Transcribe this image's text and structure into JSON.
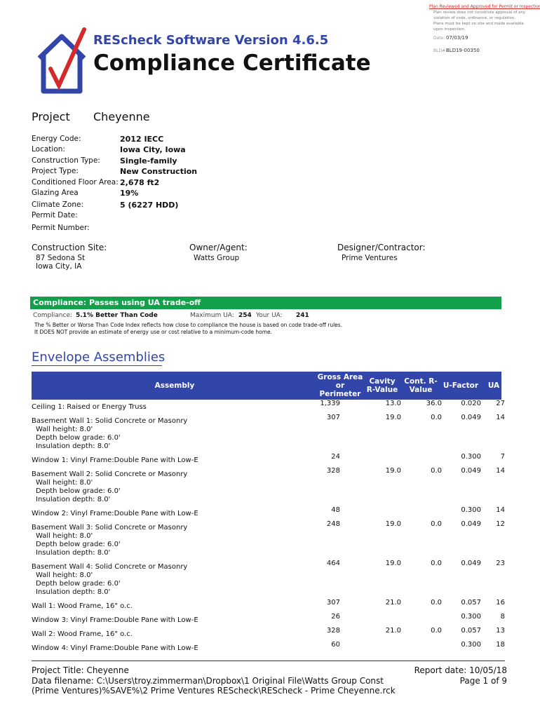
{
  "stamp": {
    "heading": "Plan Reviewed and Approved for Permit or Inspection",
    "lines": [
      "Plan review does not constitute approval of any",
      "violation of code, ordinance, or regulation.",
      "Plans must be kept on site and made available",
      "upon inspection."
    ],
    "date_label": "Date:",
    "date": "07/03/19",
    "permit_label": "BLD#:",
    "permit": "BLD19-00350"
  },
  "header": {
    "software": "REScheck Software Version 4.6.5",
    "title": "Compliance Certificate"
  },
  "project": {
    "label": "Project",
    "name": "Cheyenne",
    "fields": [
      [
        "Energy Code:",
        "2012 IECC"
      ],
      [
        "Location:",
        "Iowa City, Iowa"
      ],
      [
        "Construction Type:",
        "Single-family"
      ],
      [
        "Project Type:",
        "New Construction"
      ],
      [
        "Conditioned Floor Area:",
        "2,678 ft2"
      ],
      [
        "Glazing Area",
        "19%"
      ],
      [
        "Climate Zone:",
        "5  (6227 HDD)"
      ],
      [
        "Permit Date:",
        ""
      ],
      [
        "Permit Number:",
        ""
      ]
    ]
  },
  "parties": [
    {
      "label": "Construction Site:",
      "lines": [
        "87 Sedona St",
        "Iowa City, IA"
      ]
    },
    {
      "label": "Owner/Agent:",
      "lines": [
        "Watts Group"
      ]
    },
    {
      "label": "Designer/Contractor:",
      "lines": [
        "Prime Ventures"
      ]
    }
  ],
  "compliance": {
    "banner": "Compliance: Passes using UA trade-off",
    "label": "Compliance:",
    "result": "5.1% Better Than Code",
    "max_label": "Maximum UA:",
    "max_ua": "254",
    "your_label": "Your UA:",
    "your_ua": "241",
    "notes": [
      "The % Better or Worse Than Code Index reflects  how close to compliance the house is based on code trade-off rules.",
      "It DOES NOT provide an estimate of energy use or cost relative to a minimum-code home."
    ]
  },
  "envelope": {
    "title": "Envelope Assemblies",
    "columns": [
      "Assembly",
      "Gross Area or Perimeter",
      "Cavity R-Value",
      "Cont. R-Value",
      "U-Factor",
      "UA"
    ],
    "rows": [
      [
        [
          "Ceiling 1: Raised or Energy Truss"
        ],
        "1,339",
        "13.0",
        "36.0",
        "0.020",
        "27"
      ],
      [
        [
          "Basement Wall 1: Solid Concrete or Masonry",
          "Wall height: 8.0'",
          "Depth below grade: 6.0'",
          "Insulation depth: 8.0'"
        ],
        "307",
        "19.0",
        "0.0",
        "0.049",
        "14"
      ],
      [
        [
          "Window 1: Vinyl Frame:Double Pane with Low-E"
        ],
        "24",
        "",
        "",
        "0.300",
        "7"
      ],
      [
        [
          "Basement Wall 2: Solid Concrete or Masonry",
          "Wall height: 8.0'",
          "Depth below grade: 6.0'",
          "Insulation depth: 8.0'"
        ],
        "328",
        "19.0",
        "0.0",
        "0.049",
        "14"
      ],
      [
        [
          "Window 2: Vinyl Frame:Double Pane with Low-E"
        ],
        "48",
        "",
        "",
        "0.300",
        "14"
      ],
      [
        [
          "Basement Wall 3: Solid Concrete or Masonry",
          "Wall height: 8.0'",
          "Depth below grade: 6.0'",
          "Insulation depth: 8.0'"
        ],
        "248",
        "19.0",
        "0.0",
        "0.049",
        "12"
      ],
      [
        [
          "Basement Wall 4: Solid Concrete or Masonry",
          "Wall height: 8.0'",
          "Depth below grade: 6.0'",
          "Insulation depth: 8.0'"
        ],
        "464",
        "19.0",
        "0.0",
        "0.049",
        "23"
      ],
      [
        [
          "Wall 1: Wood Frame, 16\" o.c."
        ],
        "307",
        "21.0",
        "0.0",
        "0.057",
        "16"
      ],
      [
        [
          "Window 3: Vinyl Frame:Double Pane with Low-E"
        ],
        "26",
        "",
        "",
        "0.300",
        "8"
      ],
      [
        [
          "Wall 2: Wood Frame, 16\" o.c."
        ],
        "328",
        "21.0",
        "0.0",
        "0.057",
        "13"
      ],
      [
        [
          "Window 4: Vinyl Frame:Double Pane with Low-E"
        ],
        "60",
        "",
        "",
        "0.300",
        "18"
      ]
    ]
  },
  "footer": {
    "project_title": "Project Title: Cheyenne",
    "data_filename": "Data filename: C:\\Users\\troy.zimmerman\\Dropbox\\1 Original File\\Watts Group Const (Prime Ventures)%SAVE%\\2 Prime Ventures REScheck\\REScheck - Prime Cheyenne.rck",
    "report_date": "Report date:  10/05/18",
    "page": "Page 1 of  9"
  }
}
